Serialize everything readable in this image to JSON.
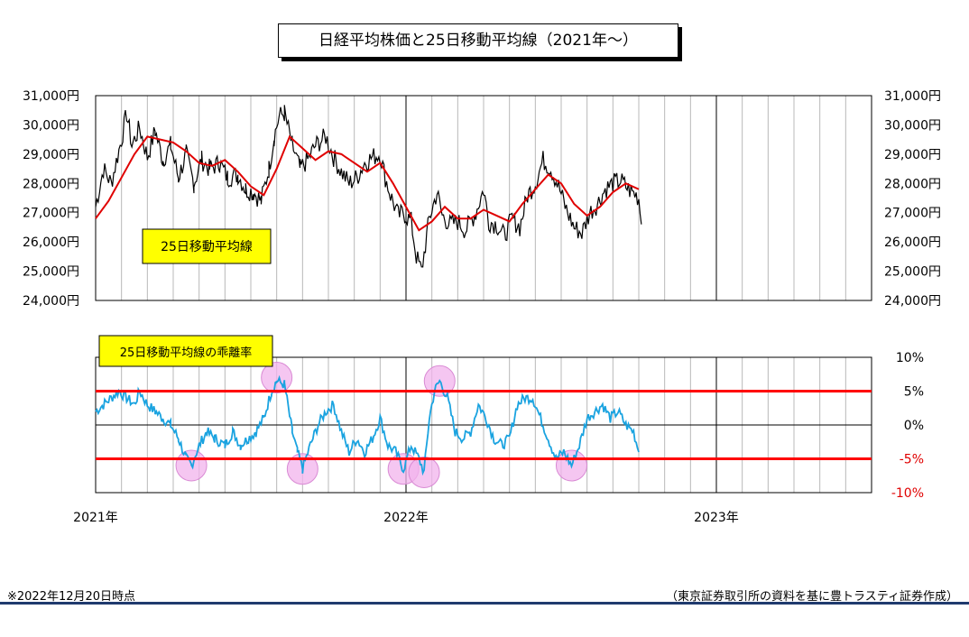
{
  "title": "日経平均株価と25日移動平均線（2021年～）",
  "footer_note": "※2022年12月20日時点",
  "footer_source": "（東京証券取引所の資料を基に豊トラスティ証券作成）",
  "colors": {
    "price": "#000000",
    "ma": "#e00000",
    "deviation": "#1aa3e0",
    "band": "#ff0000",
    "highlight": "#f2b3ec",
    "label_box": "#ffff00",
    "footer_rule": "#1f3a6e"
  },
  "chart_data": [
    {
      "type": "line",
      "y_ticks": [
        "24,000円",
        "25,000円",
        "26,000円",
        "27,000円",
        "28,000円",
        "29,000円",
        "30,000円",
        "31,000円"
      ],
      "ylim": [
        24000,
        31000
      ],
      "grid": "vertical, monthly",
      "label": "25日移動平均線",
      "x_labels": [
        "2021年",
        "2022年",
        "2023年"
      ],
      "series": [
        {
          "role": "nikkei-daily-price",
          "color": "#000000",
          "points": [
            [
              0,
              27200
            ],
            [
              0.3,
              28500
            ],
            [
              0.6,
              28000
            ],
            [
              1.0,
              29500
            ],
            [
              1.2,
              30400
            ],
            [
              1.4,
              29300
            ],
            [
              1.7,
              29900
            ],
            [
              2.0,
              28900
            ],
            [
              2.3,
              29800
            ],
            [
              2.6,
              28800
            ],
            [
              2.9,
              29300
            ],
            [
              3.2,
              28200
            ],
            [
              3.5,
              29000
            ],
            [
              3.8,
              28000
            ],
            [
              4.1,
              28800
            ],
            [
              4.4,
              28500
            ],
            [
              4.8,
              28700
            ],
            [
              5.1,
              28200
            ],
            [
              5.5,
              28300
            ],
            [
              5.8,
              27800
            ],
            [
              6.1,
              27700
            ],
            [
              6.4,
              27400
            ],
            [
              6.7,
              28500
            ],
            [
              6.9,
              29600
            ],
            [
              7.1,
              30300
            ],
            [
              7.3,
              30400
            ],
            [
              7.6,
              29300
            ],
            [
              7.9,
              28500
            ],
            [
              8.2,
              28800
            ],
            [
              8.5,
              29300
            ],
            [
              8.9,
              29600
            ],
            [
              9.2,
              28900
            ],
            [
              9.5,
              28400
            ],
            [
              9.8,
              28000
            ],
            [
              10.1,
              28200
            ],
            [
              10.4,
              28700
            ],
            [
              10.7,
              28900
            ],
            [
              11.0,
              29000
            ],
            [
              11.2,
              28200
            ],
            [
              11.4,
              27600
            ],
            [
              11.7,
              26900
            ],
            [
              11.9,
              27000
            ],
            [
              12.2,
              26700
            ],
            [
              12.4,
              25500
            ],
            [
              12.6,
              25000
            ],
            [
              12.9,
              26800
            ],
            [
              13.2,
              27700
            ],
            [
              13.4,
              26900
            ],
            [
              13.7,
              26600
            ],
            [
              14.0,
              26700
            ],
            [
              14.3,
              26400
            ],
            [
              14.7,
              27000
            ],
            [
              15.0,
              27800
            ],
            [
              15.2,
              26700
            ],
            [
              15.5,
              26600
            ],
            [
              15.8,
              26200
            ],
            [
              16.1,
              26800
            ],
            [
              16.4,
              26500
            ],
            [
              16.7,
              27600
            ],
            [
              17.0,
              28000
            ],
            [
              17.3,
              28800
            ],
            [
              17.6,
              28500
            ],
            [
              17.9,
              27900
            ],
            [
              18.2,
              27100
            ],
            [
              18.5,
              26500
            ],
            [
              18.8,
              26300
            ],
            [
              19.1,
              27000
            ],
            [
              19.4,
              27300
            ],
            [
              19.7,
              27800
            ],
            [
              20.0,
              28000
            ],
            [
              20.3,
              28100
            ],
            [
              20.6,
              27800
            ],
            [
              20.9,
              27600
            ],
            [
              21.0,
              27500
            ],
            [
              21.1,
              26600
            ]
          ]
        },
        {
          "name": "25日移動平均線",
          "color": "#e00000",
          "points": [
            [
              0,
              26800
            ],
            [
              0.5,
              27400
            ],
            [
              1.0,
              28200
            ],
            [
              1.5,
              29000
            ],
            [
              2.0,
              29600
            ],
            [
              2.5,
              29500
            ],
            [
              3.0,
              29400
            ],
            [
              3.5,
              29100
            ],
            [
              4.0,
              28700
            ],
            [
              4.5,
              28600
            ],
            [
              5.0,
              28800
            ],
            [
              5.5,
              28400
            ],
            [
              6.0,
              27900
            ],
            [
              6.5,
              27600
            ],
            [
              7.0,
              28500
            ],
            [
              7.5,
              29600
            ],
            [
              8.0,
              29200
            ],
            [
              8.5,
              28800
            ],
            [
              9.0,
              29100
            ],
            [
              9.5,
              29000
            ],
            [
              10.0,
              28700
            ],
            [
              10.5,
              28400
            ],
            [
              11.0,
              28700
            ],
            [
              11.5,
              28000
            ],
            [
              12.0,
              27200
            ],
            [
              12.5,
              26400
            ],
            [
              13.0,
              26700
            ],
            [
              13.5,
              27200
            ],
            [
              14.0,
              26800
            ],
            [
              14.5,
              26800
            ],
            [
              15.0,
              27100
            ],
            [
              15.5,
              26900
            ],
            [
              16.0,
              26700
            ],
            [
              16.5,
              27300
            ],
            [
              17.0,
              27800
            ],
            [
              17.5,
              28300
            ],
            [
              18.0,
              28000
            ],
            [
              18.5,
              27300
            ],
            [
              19.0,
              26900
            ],
            [
              19.5,
              27200
            ],
            [
              20.0,
              27700
            ],
            [
              20.5,
              28000
            ],
            [
              21.0,
              27800
            ]
          ]
        }
      ]
    },
    {
      "type": "line",
      "y_ticks": [
        "10%",
        "5%",
        "0%",
        "-5%",
        "-10%"
      ],
      "ylim": [
        -10,
        10
      ],
      "grid": "vertical, monthly",
      "label": "25日移動平均線の乖離率",
      "bands": [
        5,
        -5
      ],
      "series": [
        {
          "role": "deviation-rate",
          "color": "#1aa3e0",
          "points": [
            [
              0,
              2
            ],
            [
              0.3,
              3
            ],
            [
              0.6,
              4
            ],
            [
              0.9,
              5
            ],
            [
              1.2,
              4
            ],
            [
              1.5,
              3
            ],
            [
              1.7,
              5
            ],
            [
              2.0,
              3
            ],
            [
              2.3,
              2
            ],
            [
              2.6,
              1
            ],
            [
              2.9,
              0
            ],
            [
              3.2,
              -2
            ],
            [
              3.5,
              -5
            ],
            [
              3.7,
              -6
            ],
            [
              4.0,
              -3
            ],
            [
              4.3,
              -1
            ],
            [
              4.6,
              -2
            ],
            [
              5.0,
              -3
            ],
            [
              5.3,
              -1
            ],
            [
              5.6,
              -3
            ],
            [
              5.9,
              -2
            ],
            [
              6.2,
              -1
            ],
            [
              6.5,
              1
            ],
            [
              6.8,
              5
            ],
            [
              7.0,
              6.5
            ],
            [
              7.3,
              6
            ],
            [
              7.6,
              -1
            ],
            [
              7.8,
              -4
            ],
            [
              8.0,
              -6.5
            ],
            [
              8.3,
              -3
            ],
            [
              8.6,
              0
            ],
            [
              8.9,
              2
            ],
            [
              9.2,
              3
            ],
            [
              9.5,
              -1
            ],
            [
              9.8,
              -4
            ],
            [
              10.1,
              -2
            ],
            [
              10.4,
              -4
            ],
            [
              10.7,
              -2
            ],
            [
              11.0,
              1
            ],
            [
              11.3,
              -3
            ],
            [
              11.6,
              -4
            ],
            [
              11.9,
              -6.5
            ],
            [
              12.2,
              -3
            ],
            [
              12.5,
              -5
            ],
            [
              12.7,
              -7
            ],
            [
              12.9,
              1
            ],
            [
              13.1,
              5
            ],
            [
              13.3,
              6.5
            ],
            [
              13.6,
              4
            ],
            [
              13.9,
              -1
            ],
            [
              14.2,
              -2
            ],
            [
              14.5,
              -1
            ],
            [
              14.8,
              3
            ],
            [
              15.1,
              1
            ],
            [
              15.4,
              -2
            ],
            [
              15.7,
              -3
            ],
            [
              16.0,
              -2
            ],
            [
              16.3,
              3
            ],
            [
              16.6,
              4
            ],
            [
              16.9,
              4
            ],
            [
              17.2,
              1
            ],
            [
              17.5,
              -2
            ],
            [
              17.8,
              -5
            ],
            [
              18.1,
              -4
            ],
            [
              18.4,
              -6
            ],
            [
              18.7,
              -3
            ],
            [
              19.0,
              1
            ],
            [
              19.3,
              2
            ],
            [
              19.6,
              3
            ],
            [
              19.9,
              1
            ],
            [
              20.2,
              2
            ],
            [
              20.5,
              0
            ],
            [
              20.8,
              -1
            ],
            [
              21.0,
              -4
            ]
          ]
        }
      ],
      "highlights": [
        [
          3.7,
          -6
        ],
        [
          7.0,
          7
        ],
        [
          8.0,
          -6.5
        ],
        [
          11.9,
          -6.5
        ],
        [
          12.7,
          -7
        ],
        [
          13.3,
          6.5
        ],
        [
          18.4,
          -6
        ]
      ]
    }
  ]
}
